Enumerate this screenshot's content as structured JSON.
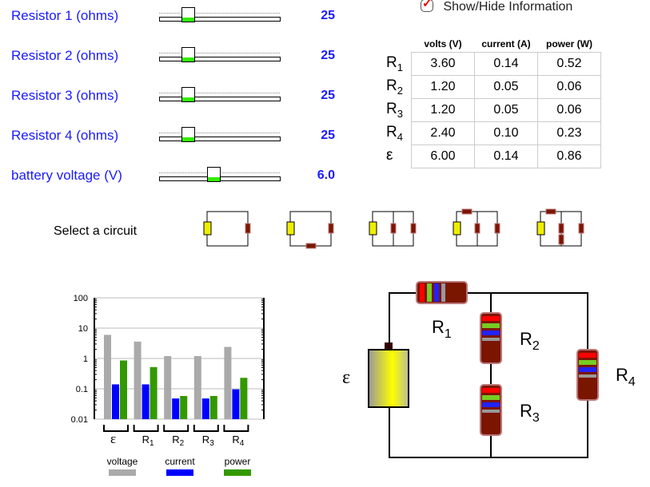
{
  "sliders": [
    {
      "label": "Resistor 1 (ohms)",
      "value": "25"
    },
    {
      "label": "Resistor 2 (ohms)",
      "value": "25"
    },
    {
      "label": "Resistor 3 (ohms)",
      "value": "25"
    },
    {
      "label": "Resistor 4 (ohms)",
      "value": "25"
    },
    {
      "label": "battery voltage (V)",
      "value": "6.0"
    }
  ],
  "info_toggle": {
    "label": "Show/Hide Information",
    "checked": true
  },
  "table": {
    "headers": [
      "volts (V)",
      "current (A)",
      "power (W)"
    ],
    "rows": [
      {
        "name": "R",
        "sub": "1",
        "cells": [
          "3.60",
          "0.14",
          "0.52"
        ]
      },
      {
        "name": "R",
        "sub": "2",
        "cells": [
          "1.20",
          "0.05",
          "0.06"
        ]
      },
      {
        "name": "R",
        "sub": "3",
        "cells": [
          "1.20",
          "0.05",
          "0.06"
        ]
      },
      {
        "name": "R",
        "sub": "4",
        "cells": [
          "2.40",
          "0.10",
          "0.23"
        ]
      },
      {
        "name": "ε",
        "sub": "",
        "cells": [
          "6.00",
          "0.14",
          "0.86"
        ]
      }
    ]
  },
  "select_circuit_label": "Select a circuit",
  "circuit": {
    "emf": "ε",
    "r1": "R",
    "r2": "R",
    "r3": "R",
    "r4": "R",
    "s1": "1",
    "s2": "2",
    "s3": "3",
    "s4": "4"
  },
  "chart_data": {
    "type": "bar",
    "yscale": "log",
    "ylim": [
      0.01,
      100
    ],
    "yticks": [
      "100",
      "10",
      "1",
      "0.1",
      "0.01"
    ],
    "categories": [
      "ε",
      "R1",
      "R2",
      "R3",
      "R4"
    ],
    "series": [
      {
        "name": "voltage",
        "color": "#aaaaaa",
        "values": [
          6.0,
          3.6,
          1.2,
          1.2,
          2.4
        ]
      },
      {
        "name": "current",
        "color": "#0000ff",
        "values": [
          0.14,
          0.14,
          0.048,
          0.048,
          0.096
        ]
      },
      {
        "name": "power",
        "color": "#339900",
        "values": [
          0.86,
          0.52,
          0.058,
          0.058,
          0.23
        ]
      }
    ],
    "grid": true,
    "legend": "bottom"
  }
}
